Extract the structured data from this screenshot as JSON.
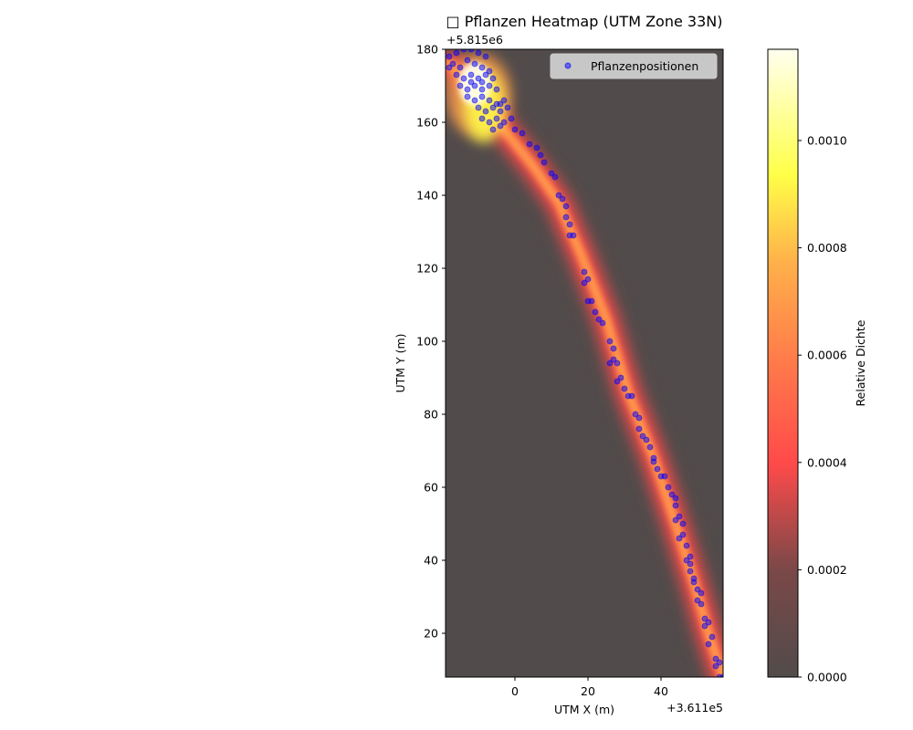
{
  "chart_data": {
    "type": "heatmap",
    "title": "□ Pflanzen Heatmap (UTM Zone 33N)",
    "xlabel": "UTM X (m)",
    "ylabel": "UTM Y (m)",
    "x_offset_label": "+3.611e5",
    "y_offset_label": "+5.815e6",
    "xlim": [
      -19,
      57
    ],
    "ylim": [
      8,
      180
    ],
    "x_ticks": [
      0,
      20,
      40
    ],
    "y_ticks": [
      20,
      40,
      60,
      80,
      100,
      120,
      140,
      160,
      180
    ],
    "grid": false,
    "legend": {
      "placement": "top-right",
      "entries": [
        {
          "label": "Pflanzenpositionen",
          "color": "#0000ff"
        }
      ]
    },
    "colorbar": {
      "label": "Relative Dichte",
      "range": [
        0,
        0.00117
      ],
      "ticks": [
        "0.0000",
        "0.0002",
        "0.0004",
        "0.0006",
        "0.0008",
        "0.0010"
      ],
      "tick_values": [
        0,
        0.0002,
        0.0004,
        0.0006,
        0.0008,
        0.001
      ],
      "colormap": [
        "#524b4b",
        "#ff4a4a",
        "#ff9a4a",
        "#ffff48",
        "#fffff0"
      ]
    },
    "heatmap_background": "#524b4b",
    "path": [
      [
        -18,
        176
      ],
      [
        -10,
        168
      ],
      [
        -3,
        158
      ],
      [
        5,
        148
      ],
      [
        12,
        138
      ],
      [
        18,
        124
      ],
      [
        25,
        106
      ],
      [
        31,
        86
      ],
      [
        38,
        68
      ],
      [
        44,
        50
      ],
      [
        49,
        34
      ],
      [
        53,
        20
      ],
      [
        57,
        8
      ]
    ],
    "hotspot": [
      -12,
      172
    ],
    "series": [
      {
        "name": "Pflanzenpositionen",
        "color": "#0000ff",
        "points": [
          [
            -18,
            178
          ],
          [
            -16,
            179
          ],
          [
            -14,
            180
          ],
          [
            -12,
            180
          ],
          [
            -10,
            179
          ],
          [
            -8,
            178
          ],
          [
            -17,
            176
          ],
          [
            -15,
            175
          ],
          [
            -13,
            177
          ],
          [
            -11,
            176
          ],
          [
            -9,
            175
          ],
          [
            -7,
            174
          ],
          [
            -16,
            173
          ],
          [
            -14,
            172
          ],
          [
            -12,
            173
          ],
          [
            -10,
            172
          ],
          [
            -8,
            173
          ],
          [
            -6,
            172
          ],
          [
            -15,
            170
          ],
          [
            -13,
            169
          ],
          [
            -11,
            170
          ],
          [
            -9,
            171
          ],
          [
            -7,
            170
          ],
          [
            -5,
            169
          ],
          [
            -13,
            167
          ],
          [
            -11,
            166
          ],
          [
            -9,
            167
          ],
          [
            -7,
            166
          ],
          [
            -5,
            165
          ],
          [
            -3,
            166
          ],
          [
            -10,
            164
          ],
          [
            -8,
            163
          ],
          [
            -6,
            164
          ],
          [
            -4,
            163
          ],
          [
            -2,
            164
          ],
          [
            -9,
            161
          ],
          [
            -7,
            160
          ],
          [
            -5,
            161
          ],
          [
            -3,
            160
          ],
          [
            -1,
            161
          ],
          [
            -6,
            158
          ],
          [
            -4,
            159
          ],
          [
            -18,
            175
          ],
          [
            -12,
            171
          ],
          [
            -9,
            169
          ],
          [
            -4,
            165
          ],
          [
            0,
            158
          ],
          [
            2,
            157
          ],
          [
            4,
            154
          ],
          [
            6,
            153
          ],
          [
            7,
            151
          ],
          [
            8,
            149
          ],
          [
            10,
            146
          ],
          [
            11,
            145
          ],
          [
            12,
            140
          ],
          [
            13,
            139
          ],
          [
            14,
            137
          ],
          [
            14,
            134
          ],
          [
            15,
            132
          ],
          [
            16,
            129
          ],
          [
            15,
            129
          ],
          [
            19,
            119
          ],
          [
            20,
            117
          ],
          [
            19,
            116
          ],
          [
            21,
            111
          ],
          [
            20,
            111
          ],
          [
            22,
            108
          ],
          [
            23,
            106
          ],
          [
            24,
            105
          ],
          [
            26,
            100
          ],
          [
            27,
            98
          ],
          [
            27,
            95
          ],
          [
            28,
            94
          ],
          [
            26,
            94
          ],
          [
            29,
            90
          ],
          [
            28,
            89
          ],
          [
            30,
            87
          ],
          [
            31,
            85
          ],
          [
            32,
            85
          ],
          [
            33,
            80
          ],
          [
            34,
            79
          ],
          [
            34,
            76
          ],
          [
            35,
            74
          ],
          [
            36,
            73
          ],
          [
            37,
            71
          ],
          [
            38,
            68
          ],
          [
            38,
            67
          ],
          [
            39,
            65
          ],
          [
            40,
            63
          ],
          [
            41,
            63
          ],
          [
            42,
            60
          ],
          [
            43,
            58
          ],
          [
            44,
            57
          ],
          [
            44,
            55
          ],
          [
            45,
            52
          ],
          [
            44,
            51
          ],
          [
            46,
            50
          ],
          [
            46,
            47
          ],
          [
            45,
            46
          ],
          [
            47,
            44
          ],
          [
            48,
            41
          ],
          [
            47,
            40
          ],
          [
            48,
            39
          ],
          [
            48,
            37
          ],
          [
            49,
            35
          ],
          [
            49,
            34
          ],
          [
            50,
            32
          ],
          [
            51,
            31
          ],
          [
            50,
            29
          ],
          [
            51,
            28
          ],
          [
            52,
            24
          ],
          [
            53,
            23
          ],
          [
            52,
            22
          ],
          [
            54,
            19
          ],
          [
            53,
            17
          ],
          [
            55,
            13
          ],
          [
            56,
            12
          ],
          [
            55,
            11
          ],
          [
            56,
            8
          ],
          [
            57,
            8
          ]
        ]
      }
    ]
  }
}
